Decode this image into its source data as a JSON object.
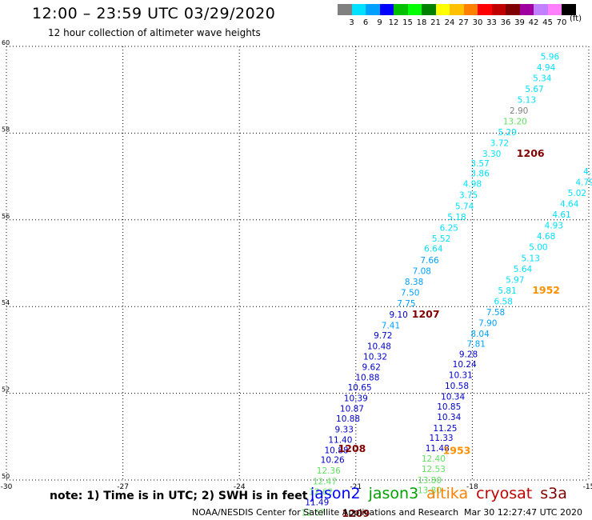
{
  "header": {
    "title": "12:00 – 23:59 UTC 03/29/2020",
    "subtitle": "12 hour collection of altimeter wave heights"
  },
  "colorscale": {
    "unit": "(ft)",
    "colors": [
      "#808080",
      "#00e0ff",
      "#00a0ff",
      "#0000ff",
      "#00c000",
      "#00ff00",
      "#008000",
      "#ffff00",
      "#ffc000",
      "#ff8000",
      "#ff0000",
      "#c00000",
      "#800000",
      "#a000a0",
      "#c080ff",
      "#ff80ff",
      "#000000"
    ],
    "labels": [
      "3",
      "6",
      "9",
      "12",
      "15",
      "18",
      "21",
      "24",
      "27",
      "30",
      "33",
      "36",
      "39",
      "42",
      "45",
      "70"
    ]
  },
  "chart_data": {
    "type": "scatter",
    "title": "12:00 – 23:59 UTC 03/29/2020",
    "xlim": [
      -30,
      -15
    ],
    "ylim": [
      50,
      60
    ],
    "x_ticks": [
      "-30",
      "-27",
      "-24",
      "-21",
      "-18",
      "-15"
    ],
    "y_ticks": [
      "50",
      "52",
      "54",
      "56",
      "58",
      "60"
    ],
    "grid": true,
    "series": [
      {
        "name": "jason2",
        "color_hint": "track 1207/1209",
        "points": [
          {
            "x": -16.0,
            "y": 59.7,
            "label": "5.96",
            "color": "#00e0ff"
          },
          {
            "x": -16.1,
            "y": 59.45,
            "label": "4.94",
            "color": "#00e0ff"
          },
          {
            "x": -16.2,
            "y": 59.2,
            "label": "5.34",
            "color": "#00e0ff"
          },
          {
            "x": -16.4,
            "y": 58.95,
            "label": "5.67",
            "color": "#00e0ff"
          },
          {
            "x": -16.6,
            "y": 58.7,
            "label": "5.13",
            "color": "#00e0ff"
          },
          {
            "x": -16.8,
            "y": 58.45,
            "label": "2.90",
            "color": "#808080"
          },
          {
            "x": -16.9,
            "y": 58.2,
            "label": "13.20",
            "color": "#60e060"
          },
          {
            "x": -17.1,
            "y": 57.95,
            "label": "5.29",
            "color": "#00e0ff"
          },
          {
            "x": -17.3,
            "y": 57.7,
            "label": "3.72",
            "color": "#00e0ff"
          },
          {
            "x": -17.5,
            "y": 57.45,
            "label": "3.30",
            "color": "#00e0ff"
          },
          {
            "x": -17.8,
            "y": 57.23,
            "label": "3.57",
            "color": "#00e0ff"
          },
          {
            "x": -17.8,
            "y": 57.0,
            "label": "3.86",
            "color": "#00e0ff"
          },
          {
            "x": -18.0,
            "y": 56.76,
            "label": "4.98",
            "color": "#00e0ff"
          },
          {
            "x": -18.1,
            "y": 56.5,
            "label": "3.75",
            "color": "#00e0ff"
          },
          {
            "x": -18.2,
            "y": 56.25,
            "label": "5.74",
            "color": "#00e0ff"
          },
          {
            "x": -18.4,
            "y": 56.0,
            "label": "5.18",
            "color": "#00e0ff"
          },
          {
            "x": -18.6,
            "y": 55.75,
            "label": "6.25",
            "color": "#00e0ff"
          },
          {
            "x": -18.8,
            "y": 55.5,
            "label": "5.52",
            "color": "#00e0ff"
          },
          {
            "x": -19.0,
            "y": 55.27,
            "label": "6.64",
            "color": "#00e0ff"
          },
          {
            "x": -19.1,
            "y": 55.0,
            "label": "7.66",
            "color": "#00a0ff"
          },
          {
            "x": -19.3,
            "y": 54.75,
            "label": "7.08",
            "color": "#00a0ff"
          },
          {
            "x": -19.5,
            "y": 54.5,
            "label": "8.38",
            "color": "#00a0ff"
          },
          {
            "x": -19.6,
            "y": 54.25,
            "label": "7.50",
            "color": "#00a0ff"
          },
          {
            "x": -19.7,
            "y": 54.0,
            "label": "7.75",
            "color": "#00a0ff"
          },
          {
            "x": -19.9,
            "y": 53.75,
            "label": "9.10",
            "color": "#0000cc"
          },
          {
            "x": -20.1,
            "y": 53.5,
            "label": "7.41",
            "color": "#00a0ff"
          },
          {
            "x": -20.3,
            "y": 53.27,
            "label": "9.72",
            "color": "#0000cc"
          },
          {
            "x": -20.4,
            "y": 53.02,
            "label": "10.48",
            "color": "#0000cc"
          },
          {
            "x": -20.5,
            "y": 52.78,
            "label": "10.32",
            "color": "#0000cc"
          },
          {
            "x": -20.6,
            "y": 52.54,
            "label": "9.62",
            "color": "#0000cc"
          },
          {
            "x": -20.7,
            "y": 52.3,
            "label": "10.88",
            "color": "#0000cc"
          },
          {
            "x": -20.9,
            "y": 52.07,
            "label": "10.65",
            "color": "#0000cc"
          },
          {
            "x": -21.0,
            "y": 51.82,
            "label": "10.39",
            "color": "#0000cc"
          },
          {
            "x": -21.1,
            "y": 51.58,
            "label": "10.87",
            "color": "#0000cc"
          },
          {
            "x": -21.2,
            "y": 51.35,
            "label": "10.88",
            "color": "#0000cc"
          },
          {
            "x": -21.3,
            "y": 51.1,
            "label": "9.33",
            "color": "#0000cc"
          },
          {
            "x": -21.4,
            "y": 50.86,
            "label": "11.40",
            "color": "#0000cc"
          },
          {
            "x": -21.5,
            "y": 50.62,
            "label": "10.88",
            "color": "#0000cc"
          },
          {
            "x": -21.6,
            "y": 50.4,
            "label": "10.26",
            "color": "#0000cc"
          },
          {
            "x": -21.7,
            "y": 50.15,
            "label": "12.36",
            "color": "#60e060"
          },
          {
            "x": -21.8,
            "y": 49.9,
            "label": "12.47",
            "color": "#60e060"
          },
          {
            "x": -21.9,
            "y": 49.66,
            "label": "12.62",
            "color": "#60e060"
          },
          {
            "x": -22.0,
            "y": 49.42,
            "label": "11.49",
            "color": "#0000cc"
          },
          {
            "x": -22.1,
            "y": 49.18,
            "label": "12.67",
            "color": "#60e060"
          }
        ]
      },
      {
        "name": "jason3",
        "color_hint": "track 1952/1953",
        "points": [
          {
            "x": -14.7,
            "y": 57.55,
            "label": "4.",
            "color": "#00e0ff"
          },
          {
            "x": -14.7,
            "y": 57.3,
            "label": "4.4",
            "color": "#00e0ff"
          },
          {
            "x": -14.9,
            "y": 57.05,
            "label": "4.98",
            "color": "#00e0ff"
          },
          {
            "x": -15.1,
            "y": 56.8,
            "label": "4.79",
            "color": "#00e0ff"
          },
          {
            "x": -15.3,
            "y": 56.55,
            "label": "5.02",
            "color": "#00e0ff"
          },
          {
            "x": -15.5,
            "y": 56.3,
            "label": "4.64",
            "color": "#00e0ff"
          },
          {
            "x": -15.7,
            "y": 56.05,
            "label": "4.61",
            "color": "#00e0ff"
          },
          {
            "x": -15.9,
            "y": 55.8,
            "label": "4.93",
            "color": "#00e0ff"
          },
          {
            "x": -16.1,
            "y": 55.55,
            "label": "4.68",
            "color": "#00e0ff"
          },
          {
            "x": -16.3,
            "y": 55.3,
            "label": "5.00",
            "color": "#00e0ff"
          },
          {
            "x": -16.5,
            "y": 55.05,
            "label": "5.13",
            "color": "#00e0ff"
          },
          {
            "x": -16.7,
            "y": 54.8,
            "label": "5.64",
            "color": "#00e0ff"
          },
          {
            "x": -16.9,
            "y": 54.55,
            "label": "5.97",
            "color": "#00e0ff"
          },
          {
            "x": -17.1,
            "y": 54.3,
            "label": "5.81",
            "color": "#00e0ff"
          },
          {
            "x": -17.2,
            "y": 54.05,
            "label": "6.58",
            "color": "#00e0ff"
          },
          {
            "x": -17.4,
            "y": 53.8,
            "label": "7.58",
            "color": "#00a0ff"
          },
          {
            "x": -17.6,
            "y": 53.55,
            "label": "7.90",
            "color": "#00a0ff"
          },
          {
            "x": -17.8,
            "y": 53.3,
            "label": "8.04",
            "color": "#00a0ff"
          },
          {
            "x": -17.9,
            "y": 53.07,
            "label": "7.81",
            "color": "#00a0ff"
          },
          {
            "x": -18.1,
            "y": 52.83,
            "label": "9.28",
            "color": "#0000cc"
          },
          {
            "x": -18.2,
            "y": 52.6,
            "label": "10.24",
            "color": "#0000cc"
          },
          {
            "x": -18.3,
            "y": 52.35,
            "label": "10.31",
            "color": "#0000cc"
          },
          {
            "x": -18.4,
            "y": 52.1,
            "label": "10.58",
            "color": "#0000cc"
          },
          {
            "x": -18.5,
            "y": 51.85,
            "label": "10.34",
            "color": "#0000cc"
          },
          {
            "x": -18.6,
            "y": 51.62,
            "label": "10.85",
            "color": "#0000cc"
          },
          {
            "x": -18.6,
            "y": 51.38,
            "label": "10.34",
            "color": "#0000cc"
          },
          {
            "x": -18.7,
            "y": 51.13,
            "label": "11.25",
            "color": "#0000cc"
          },
          {
            "x": -18.8,
            "y": 50.9,
            "label": "11.33",
            "color": "#0000cc"
          },
          {
            "x": -18.9,
            "y": 50.66,
            "label": "11.48",
            "color": "#0000cc"
          },
          {
            "x": -19.0,
            "y": 50.42,
            "label": "12.40",
            "color": "#60e060"
          },
          {
            "x": -19.0,
            "y": 50.18,
            "label": "12.53",
            "color": "#60e060"
          },
          {
            "x": -19.1,
            "y": 49.93,
            "label": "13.80",
            "color": "#60e060"
          },
          {
            "x": -19.1,
            "y": 49.7,
            "label": "13.80",
            "color": "#60e060"
          }
        ]
      }
    ],
    "pass_labels": [
      {
        "x": -16.5,
        "y": 57.45,
        "label": "1206"
      },
      {
        "x": -19.2,
        "y": 53.75,
        "label": "1207"
      },
      {
        "x": -21.1,
        "y": 50.65,
        "label": "1208"
      },
      {
        "x": -21.0,
        "y": 49.15,
        "label": "1209"
      },
      {
        "x": -16.1,
        "y": 54.3,
        "label": "1952"
      },
      {
        "x": -18.4,
        "y": 50.6,
        "label": "1953"
      }
    ]
  },
  "notes": {
    "text": "note:  1) Time is in UTC;  2) SWH is in feet"
  },
  "satellites": [
    {
      "name": "jason2",
      "color": "#0000ff"
    },
    {
      "name": "jason3",
      "color": "#00a000"
    },
    {
      "name": "altika",
      "color": "#ff8000"
    },
    {
      "name": "cryosat",
      "color": "#c00000"
    },
    {
      "name": "s3a",
      "color": "#800000"
    }
  ],
  "footer": {
    "left": "NOAA/NESDIS Center for Satellite Applications and Research",
    "right": "Mar 30 12:27:47 UTC 2020"
  }
}
